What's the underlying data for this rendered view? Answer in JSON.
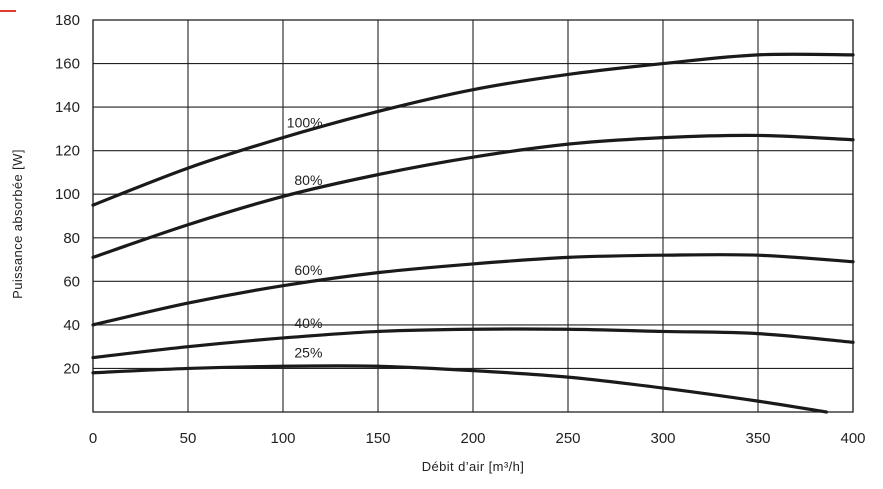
{
  "accent_color": "#e03a2f",
  "curve_color": "#1a1a1a",
  "chart_data": {
    "type": "line",
    "title": "",
    "xlabel": "Débit d’air [m³/h]",
    "ylabel": "Puissance absorbée [W]",
    "xlim": [
      0,
      400
    ],
    "ylim": [
      0,
      180
    ],
    "x_ticks": [
      "0",
      "50",
      "100",
      "150",
      "200",
      "250",
      "300",
      "350",
      "400"
    ],
    "y_ticks": [
      "20",
      "40",
      "60",
      "80",
      "100",
      "120",
      "140",
      "160",
      "180"
    ],
    "grid": true,
    "legend": "none",
    "series": [
      {
        "name": "100%",
        "x": [
          0,
          50,
          100,
          150,
          200,
          250,
          300,
          350,
          400
        ],
        "y": [
          95,
          112,
          126,
          138,
          148,
          155,
          160,
          164,
          164
        ]
      },
      {
        "name": "80%",
        "x": [
          0,
          50,
          100,
          150,
          200,
          250,
          300,
          350,
          400
        ],
        "y": [
          71,
          86,
          99,
          109,
          117,
          123,
          126,
          127,
          125
        ]
      },
      {
        "name": "60%",
        "x": [
          0,
          50,
          100,
          150,
          200,
          250,
          300,
          350,
          400
        ],
        "y": [
          40,
          50,
          58,
          64,
          68,
          71,
          72,
          72,
          69
        ]
      },
      {
        "name": "40%",
        "x": [
          0,
          50,
          100,
          150,
          200,
          250,
          300,
          350,
          400
        ],
        "y": [
          25,
          30,
          34,
          37,
          38,
          38,
          37,
          36,
          32
        ]
      },
      {
        "name": "25%",
        "x": [
          0,
          50,
          100,
          150,
          200,
          250,
          300,
          350,
          386
        ],
        "y": [
          18,
          20,
          21,
          21,
          19,
          16,
          11,
          5,
          0
        ]
      }
    ]
  }
}
